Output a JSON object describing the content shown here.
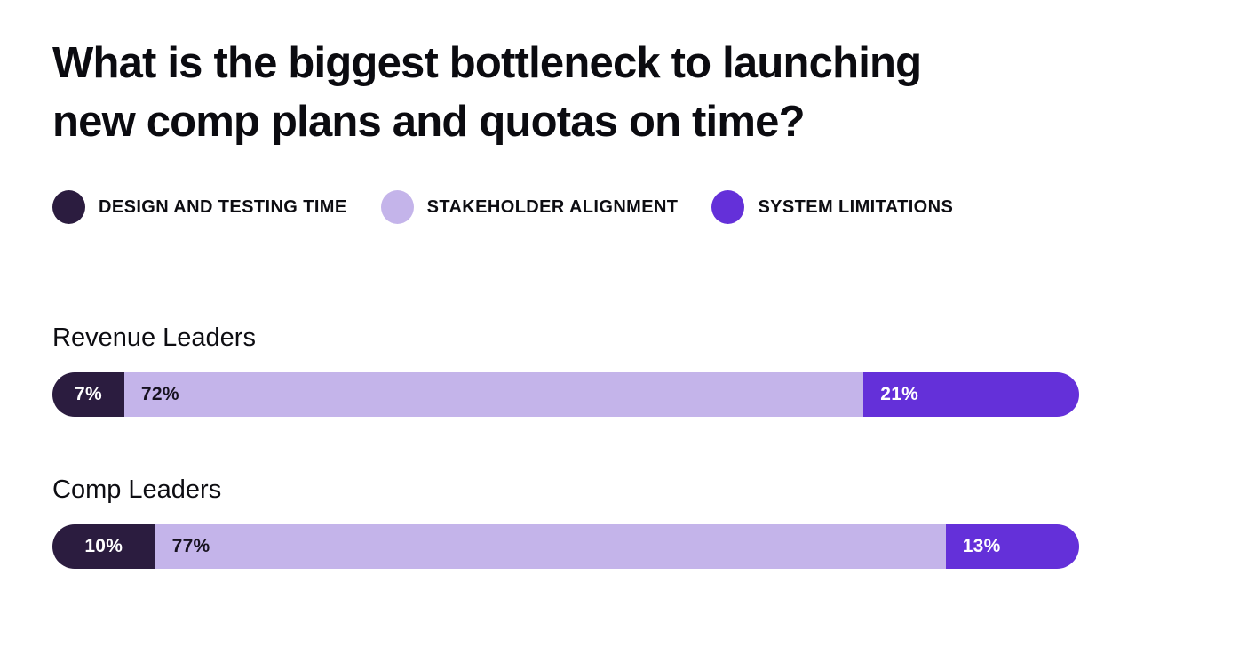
{
  "title": {
    "line1": "What is the biggest bottleneck to launching",
    "line2": "new comp plans and quotas on time?"
  },
  "colors": {
    "background": "#ffffff",
    "text": "#0d0d12",
    "design_and_testing_time": "#2b1c3f",
    "stakeholder_alignment": "#c4b4ea",
    "system_limitations": "#6430d9"
  },
  "chart_data": {
    "type": "bar",
    "subtype": "horizontal-stacked",
    "title": "What is the biggest bottleneck to launching new comp plans and quotas on time?",
    "unit": "%",
    "xlim": [
      0,
      100
    ],
    "legend_position": "top",
    "grid": false,
    "series": [
      {
        "name": "DESIGN AND TESTING TIME",
        "color": "#2b1c3f",
        "label_color": "#ffffff"
      },
      {
        "name": "STAKEHOLDER ALIGNMENT",
        "color": "#c4b4ea",
        "label_color": "#17121f"
      },
      {
        "name": "SYSTEM LIMITATIONS",
        "color": "#6430d9",
        "label_color": "#ffffff"
      }
    ],
    "categories": [
      "Revenue Leaders",
      "Comp Leaders"
    ],
    "rows": [
      {
        "label": "Revenue Leaders",
        "values": [
          7,
          72,
          21
        ]
      },
      {
        "label": "Comp Leaders",
        "values": [
          10,
          77,
          13
        ]
      }
    ]
  }
}
